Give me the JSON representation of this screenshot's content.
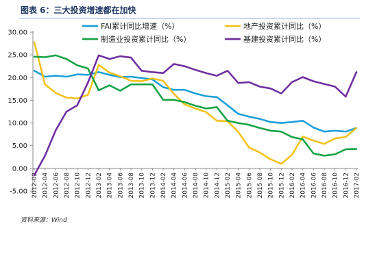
{
  "header": {
    "title": "图表 6：三大投资增速都在加快"
  },
  "footer": {
    "source": "资料来源：Wind"
  },
  "chart_data": {
    "type": "line",
    "ylim": [
      -5,
      30
    ],
    "yticks": [
      "-5.00",
      "0.00",
      "5.00",
      "10.00",
      "15.00",
      "20.00",
      "25.00",
      "30.00"
    ],
    "ytick_values": [
      -5,
      0,
      5,
      10,
      15,
      20,
      25,
      30
    ],
    "grid": false,
    "legend_position": "top",
    "x_labels": [
      "2012-02",
      "2012-04",
      "2012-06",
      "2012-08",
      "2012-10",
      "2012-12",
      "2013-02",
      "2013-04",
      "2013-06",
      "2013-08",
      "2013-10",
      "2013-12",
      "2014-02",
      "2014-04",
      "2014-06",
      "2014-08",
      "2014-10",
      "2014-12",
      "2015-02",
      "2015-04",
      "2015-06",
      "2015-08",
      "2015-10",
      "2015-12",
      "2016-02",
      "2016-04",
      "2016-06",
      "2016-08",
      "2016-10",
      "2016-12",
      "2017-02"
    ],
    "series": [
      {
        "name": "FAI累计同比增速（%）",
        "color": "#1ea0d8",
        "values": [
          21.5,
          20.2,
          20.4,
          20.2,
          20.7,
          20.6,
          21.2,
          20.6,
          20.1,
          20.2,
          19.9,
          19.6,
          17.9,
          17.3,
          17.3,
          16.5,
          15.9,
          15.7,
          13.9,
          12.0,
          11.4,
          10.9,
          10.2,
          10.0,
          10.2,
          10.5,
          9.0,
          8.1,
          8.3,
          8.1,
          8.9
        ]
      },
      {
        "name": "地产投资累计同比（%）",
        "color": "#f2c21b",
        "values": [
          27.8,
          18.5,
          16.6,
          15.6,
          15.4,
          16.2,
          22.8,
          21.1,
          20.3,
          19.3,
          19.2,
          19.8,
          19.3,
          16.4,
          14.1,
          13.2,
          12.4,
          10.5,
          10.4,
          8.0,
          4.6,
          3.5,
          2.0,
          1.0,
          3.0,
          7.0,
          6.1,
          5.4,
          6.6,
          6.9,
          8.9
        ]
      },
      {
        "name": "制造业投资累计同比（%）",
        "color": "#17a345",
        "values": [
          24.6,
          24.5,
          24.9,
          24.1,
          22.7,
          22.0,
          17.2,
          18.3,
          17.1,
          18.5,
          18.5,
          18.5,
          15.1,
          15.1,
          14.6,
          13.8,
          13.2,
          13.5,
          10.5,
          10.0,
          9.6,
          8.9,
          8.3,
          8.1,
          6.9,
          6.4,
          3.3,
          2.8,
          3.1,
          4.2,
          4.3
        ]
      },
      {
        "name": "基建投资累计同比（%）",
        "color": "#7030a0",
        "values": [
          -1.5,
          2.8,
          8.4,
          12.5,
          13.9,
          18.9,
          24.9,
          24.1,
          24.7,
          24.4,
          21.5,
          21.2,
          21.0,
          23.0,
          22.5,
          21.7,
          21.0,
          20.4,
          21.5,
          18.8,
          19.0,
          18.0,
          17.6,
          16.5,
          19.0,
          20.1,
          19.2,
          18.6,
          18.0,
          15.8,
          21.2
        ]
      }
    ]
  }
}
